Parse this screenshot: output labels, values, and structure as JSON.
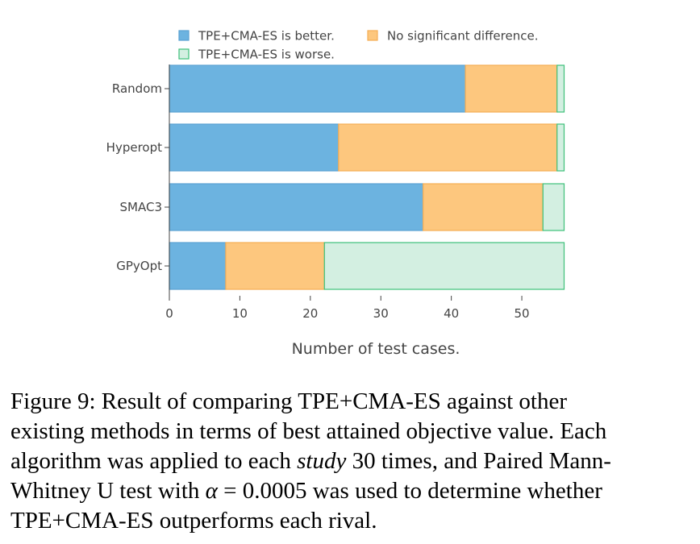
{
  "chart_data": {
    "type": "bar",
    "orientation": "horizontal",
    "stacked": true,
    "categories": [
      "Random",
      "Hyperopt",
      "SMAC3",
      "GPyOpt"
    ],
    "series": [
      {
        "name": "TPE+CMA-ES is better.",
        "values": [
          42,
          24,
          36,
          8
        ],
        "color": "#6cb3e0",
        "edge": "#5aa2d2"
      },
      {
        "name": "No significant difference.",
        "values": [
          13,
          31,
          17,
          14
        ],
        "color": "#fdc77e",
        "edge": "#f5ad55"
      },
      {
        "name": "TPE+CMA-ES is worse.",
        "values": [
          1,
          1,
          3,
          34
        ],
        "color": "#d3efe1",
        "edge": "#3ec07a"
      }
    ],
    "xticks": [
      "0",
      "10",
      "20",
      "30",
      "40",
      "50"
    ],
    "xlim": [
      0,
      56
    ],
    "xlabel": "Number of test cases.",
    "legend_position": "top",
    "grid": false
  },
  "caption": {
    "lines": [
      "Figure 9:  Result of comparing TPE+CMA-ES against other",
      "existing methods in terms of best attained objective value. Each"
    ],
    "line3_before": "algorithm was applied to each ",
    "line3_italic": "study",
    "line3_after": " 30 times, and Paired Mann-",
    "line4_before": "Whitney U test with ",
    "line4_alpha": "α",
    "line4_after": " = 0.0005 was used to determine whether",
    "line5": "TPE+CMA-ES outperforms each rival."
  }
}
